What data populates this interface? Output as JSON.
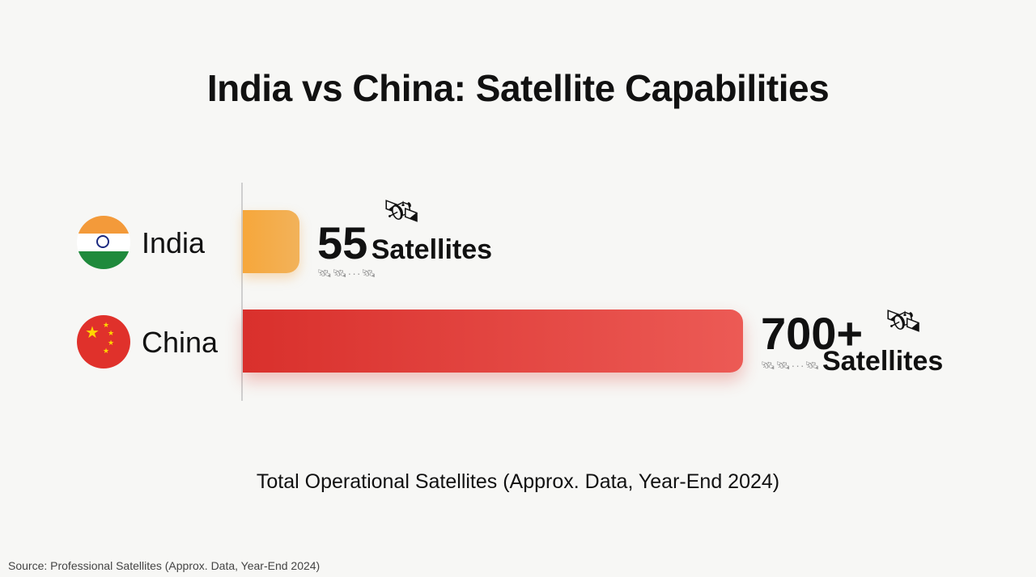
{
  "title": "India vs China: Satellite Capabilities",
  "chart_data": {
    "type": "bar",
    "orientation": "horizontal",
    "title": "India vs China: Satellite Capabilities",
    "categories": [
      "India",
      "China"
    ],
    "values": [
      55,
      700
    ],
    "data_labels": [
      {
        "number": "55",
        "unit": "Satellites"
      },
      {
        "number": "700+",
        "unit": "Satellites"
      }
    ],
    "xlabel": "Total Operational Satellites (Approx. Data, Year-End 2024)",
    "colors": [
      "#f6a73b",
      "#e03a35"
    ],
    "grid": false
  },
  "icons": {
    "india": "india-flag-icon",
    "china": "china-flag-icon",
    "satellite": "satellite-icon"
  },
  "source": "Source: Professional Satellites (Approx. Data, Year-End 2024)"
}
